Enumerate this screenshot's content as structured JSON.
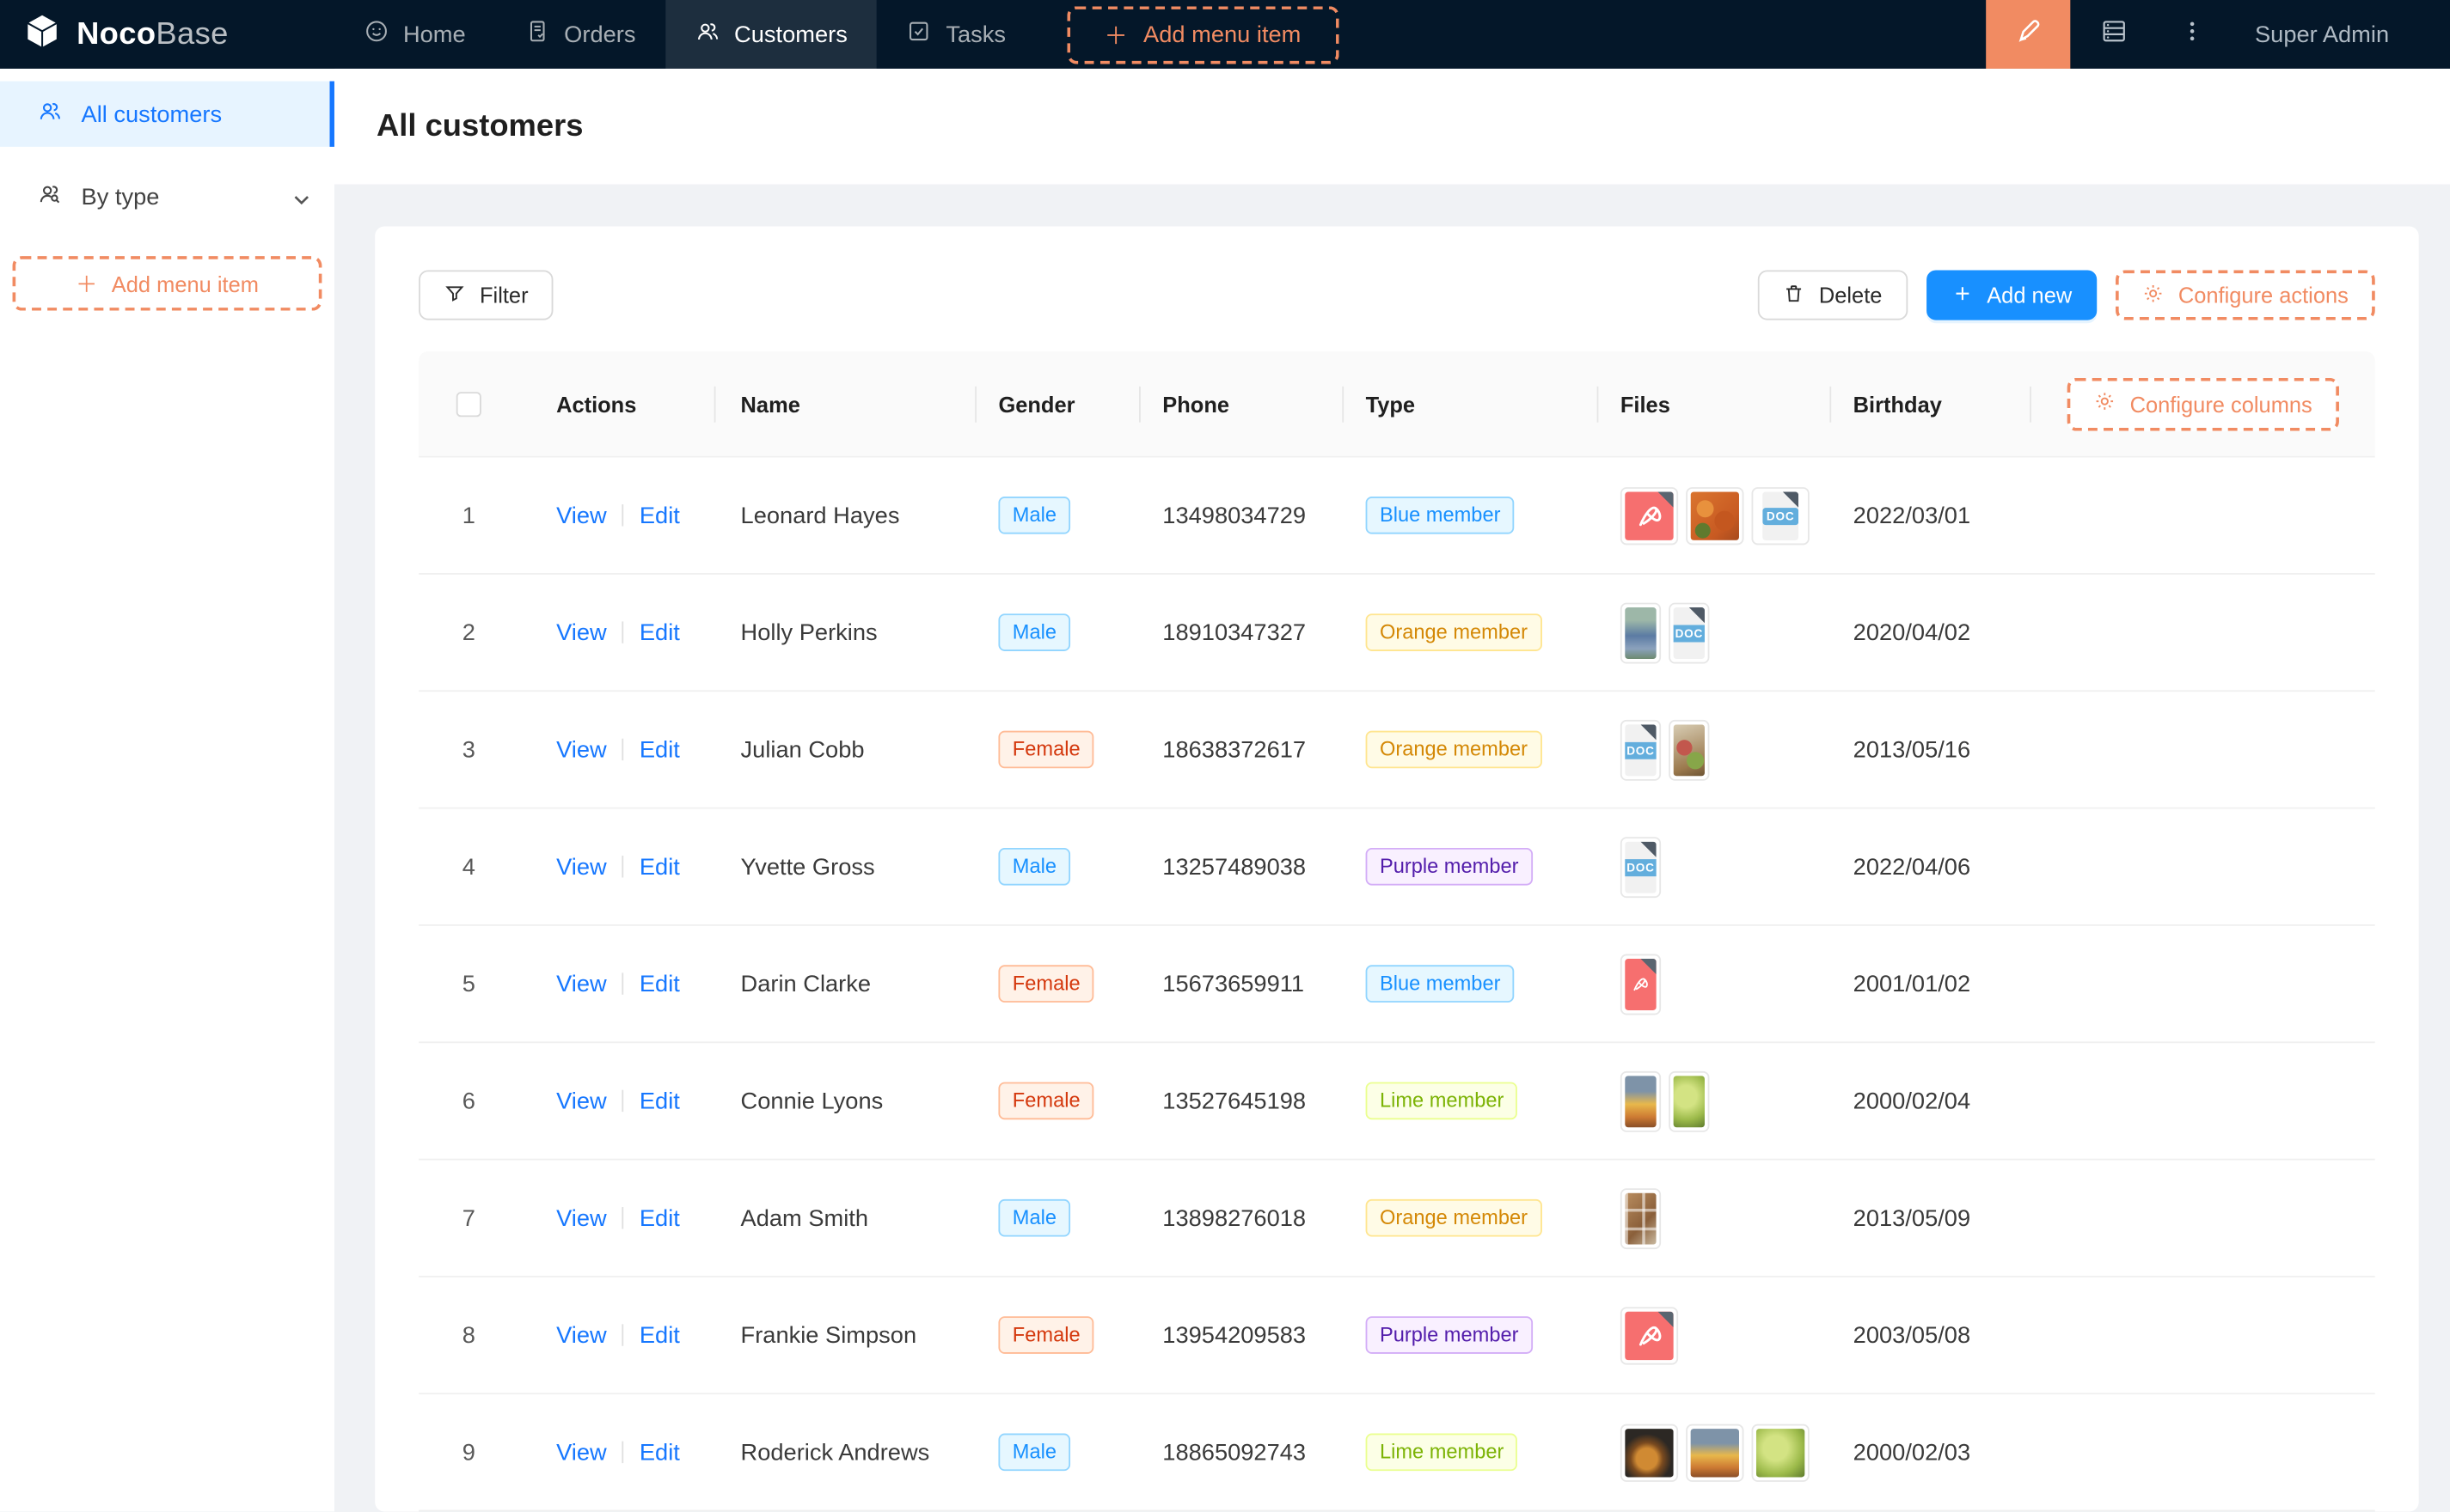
{
  "navbar": {
    "logo_primary": "Noco",
    "logo_secondary": "Base",
    "items": [
      {
        "label": "Home",
        "icon": "smiley-icon",
        "active": false
      },
      {
        "label": "Orders",
        "icon": "orders-document-icon",
        "active": false
      },
      {
        "label": "Customers",
        "icon": "people-icon",
        "active": true
      },
      {
        "label": "Tasks",
        "icon": "task-checkbox-icon",
        "active": false
      }
    ],
    "add_menu_item_label": "Add menu item",
    "user_name": "Super Admin"
  },
  "sidebar": {
    "items": [
      {
        "label": "All customers",
        "icon": "people-icon",
        "active": true
      },
      {
        "label": "By type",
        "icon": "people-search-icon",
        "active": false,
        "collapsible": true
      }
    ],
    "add_menu_item_label": "Add menu item"
  },
  "page": {
    "title": "All customers"
  },
  "toolbar": {
    "filter_label": "Filter",
    "delete_label": "Delete",
    "add_new_label": "Add new",
    "configure_actions_label": "Configure actions"
  },
  "table": {
    "headers": [
      "Actions",
      "Name",
      "Gender",
      "Phone",
      "Type",
      "Files",
      "Birthday"
    ],
    "configure_columns_label": "Configure columns",
    "action_labels": [
      "View",
      "Edit"
    ],
    "doc_label": "DOC",
    "badge_colors": {
      "Male": {
        "bg": "#e6f7ff",
        "border": "#91d5ff",
        "text": "#1890ff"
      },
      "Female": {
        "bg": "#fff2e8",
        "border": "#ffbb96",
        "text": "#d4380d"
      },
      "Blue member": {
        "bg": "#e6f7ff",
        "border": "#91d5ff",
        "text": "#1890ff"
      },
      "Orange member": {
        "bg": "#fffbe6",
        "border": "#ffe58f",
        "text": "#d48806"
      },
      "Purple member": {
        "bg": "#f9f0ff",
        "border": "#d3adf7",
        "text": "#531dab"
      },
      "Lime member": {
        "bg": "#fcffe6",
        "border": "#eaff8f",
        "text": "#7cb305"
      }
    },
    "rows": [
      {
        "index": "1",
        "name": "Leonard Hayes",
        "gender": "Male",
        "phone": "13498034729",
        "type": "Blue member",
        "birthday": "2022/03/01",
        "files": [
          {
            "kind": "pdf",
            "shape": "square"
          },
          {
            "kind": "photo",
            "shape": "square",
            "variant": "orange-speckle"
          },
          {
            "kind": "doc",
            "shape": "square"
          }
        ]
      },
      {
        "index": "2",
        "name": "Holly Perkins",
        "gender": "Male",
        "phone": "18910347327",
        "type": "Orange member",
        "birthday": "2020/04/02",
        "files": [
          {
            "kind": "photo",
            "shape": "portrait",
            "variant": "crowd-blue"
          },
          {
            "kind": "doc",
            "shape": "portrait"
          }
        ]
      },
      {
        "index": "3",
        "name": "Julian Cobb",
        "gender": "Female",
        "phone": "18638372617",
        "type": "Orange member",
        "birthday": "2013/05/16",
        "files": [
          {
            "kind": "doc",
            "shape": "portrait"
          },
          {
            "kind": "photo",
            "shape": "portrait",
            "variant": "platter"
          }
        ]
      },
      {
        "index": "4",
        "name": "Yvette Gross",
        "gender": "Male",
        "phone": "13257489038",
        "type": "Purple member",
        "birthday": "2022/04/06",
        "files": [
          {
            "kind": "doc",
            "shape": "portrait"
          }
        ]
      },
      {
        "index": "5",
        "name": "Darin Clarke",
        "gender": "Female",
        "phone": "15673659911",
        "type": "Blue member",
        "birthday": "2001/01/02",
        "files": [
          {
            "kind": "pdf",
            "shape": "portrait"
          }
        ]
      },
      {
        "index": "6",
        "name": "Connie Lyons",
        "gender": "Female",
        "phone": "13527645198",
        "type": "Lime member",
        "birthday": "2000/02/04",
        "files": [
          {
            "kind": "photo",
            "shape": "portrait",
            "variant": "fruit-still"
          },
          {
            "kind": "photo",
            "shape": "portrait",
            "variant": "grapes"
          }
        ]
      },
      {
        "index": "7",
        "name": "Adam Smith",
        "gender": "Male",
        "phone": "13898276018",
        "type": "Orange member",
        "birthday": "2013/05/09",
        "files": [
          {
            "kind": "photo",
            "shape": "portrait",
            "variant": "collage"
          }
        ]
      },
      {
        "index": "8",
        "name": "Frankie Simpson",
        "gender": "Female",
        "phone": "13954209583",
        "type": "Purple member",
        "birthday": "2003/05/08",
        "files": [
          {
            "kind": "pdf",
            "shape": "square"
          }
        ]
      },
      {
        "index": "9",
        "name": "Roderick Andrews",
        "gender": "Male",
        "phone": "18865092743",
        "type": "Lime member",
        "birthday": "2000/02/03",
        "files": [
          {
            "kind": "photo",
            "shape": "square",
            "variant": "dark-fruit"
          },
          {
            "kind": "photo",
            "shape": "square",
            "variant": "fruit-still"
          },
          {
            "kind": "photo",
            "shape": "square",
            "variant": "grapes"
          }
        ]
      }
    ]
  },
  "colors": {
    "navbar_bg": "#041729",
    "designer_orange": "#f18b62",
    "accent_blue": "#1890ff",
    "link_blue": "#1677ff",
    "page_bg": "#f0f2f5"
  }
}
